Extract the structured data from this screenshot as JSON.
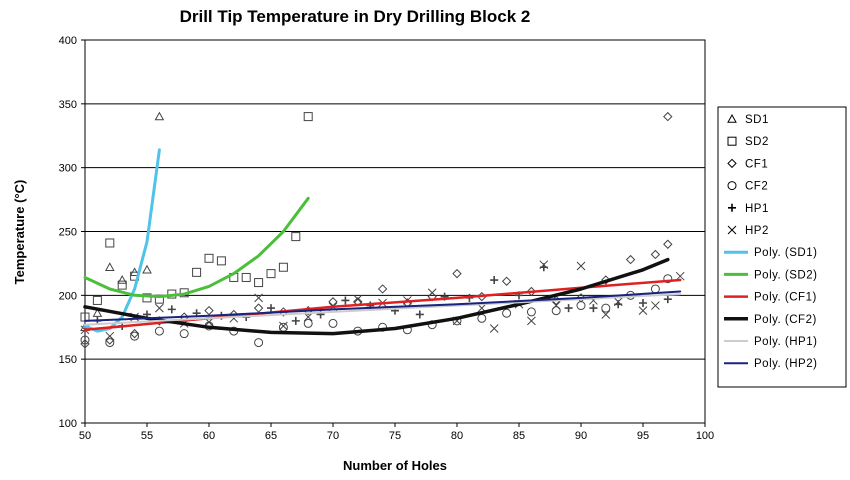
{
  "chart_data": {
    "type": "scatter",
    "title": "Drill Tip Temperature in Dry Drilling Block 2",
    "xlabel": "Number of Holes",
    "ylabel": "Temperature (°C)",
    "xlim": [
      50,
      100
    ],
    "ylim": [
      100,
      400
    ],
    "x_ticks": [
      50,
      55,
      60,
      65,
      70,
      75,
      80,
      85,
      90,
      95,
      100
    ],
    "y_ticks": [
      100,
      150,
      200,
      250,
      300,
      350,
      400
    ],
    "y_grid": true,
    "legend_position": "right",
    "series": [
      {
        "name": "SD1",
        "marker": "triangle",
        "color": "#444444",
        "points": [
          [
            50,
            175
          ],
          [
            51,
            186
          ],
          [
            52,
            222
          ],
          [
            53,
            212
          ],
          [
            54,
            218
          ],
          [
            55,
            220
          ],
          [
            56,
            340
          ]
        ]
      },
      {
        "name": "SD2",
        "marker": "square",
        "color": "#444444",
        "points": [
          [
            50,
            183
          ],
          [
            51,
            196
          ],
          [
            52,
            241
          ],
          [
            53,
            208
          ],
          [
            54,
            215
          ],
          [
            55,
            198
          ],
          [
            56,
            197
          ],
          [
            57,
            201
          ],
          [
            58,
            202
          ],
          [
            59,
            218
          ],
          [
            60,
            229
          ],
          [
            61,
            227
          ],
          [
            62,
            214
          ],
          [
            63,
            214
          ],
          [
            64,
            210
          ],
          [
            65,
            217
          ],
          [
            66,
            222
          ],
          [
            67,
            246
          ],
          [
            68,
            340
          ]
        ]
      },
      {
        "name": "CF1",
        "marker": "diamond",
        "color": "#444444",
        "points": [
          [
            50,
            162
          ],
          [
            52,
            165
          ],
          [
            54,
            170
          ],
          [
            56,
            180
          ],
          [
            58,
            183
          ],
          [
            60,
            188
          ],
          [
            62,
            185
          ],
          [
            64,
            190
          ],
          [
            66,
            187
          ],
          [
            68,
            188
          ],
          [
            70,
            195
          ],
          [
            72,
            195
          ],
          [
            74,
            205
          ],
          [
            76,
            194
          ],
          [
            78,
            199
          ],
          [
            80,
            217
          ],
          [
            82,
            199
          ],
          [
            84,
            211
          ],
          [
            86,
            203
          ],
          [
            88,
            196
          ],
          [
            90,
            198
          ],
          [
            92,
            212
          ],
          [
            94,
            228
          ],
          [
            96,
            232
          ],
          [
            97,
            340
          ],
          [
            97,
            240
          ]
        ]
      },
      {
        "name": "CF2",
        "marker": "circle",
        "color": "#444444",
        "points": [
          [
            50,
            165
          ],
          [
            52,
            163
          ],
          [
            54,
            168
          ],
          [
            56,
            172
          ],
          [
            58,
            170
          ],
          [
            60,
            176
          ],
          [
            62,
            172
          ],
          [
            64,
            163
          ],
          [
            66,
            175
          ],
          [
            68,
            178
          ],
          [
            70,
            178
          ],
          [
            72,
            172
          ],
          [
            74,
            175
          ],
          [
            76,
            173
          ],
          [
            78,
            177
          ],
          [
            80,
            180
          ],
          [
            82,
            182
          ],
          [
            84,
            186
          ],
          [
            86,
            187
          ],
          [
            88,
            188
          ],
          [
            90,
            192
          ],
          [
            92,
            190
          ],
          [
            94,
            200
          ],
          [
            96,
            205
          ],
          [
            97,
            213
          ]
        ]
      },
      {
        "name": "HP1",
        "marker": "plus",
        "color": "#444444",
        "points": [
          [
            51,
            180
          ],
          [
            53,
            176
          ],
          [
            55,
            185
          ],
          [
            57,
            189
          ],
          [
            59,
            186
          ],
          [
            61,
            184
          ],
          [
            63,
            183
          ],
          [
            65,
            190
          ],
          [
            67,
            180
          ],
          [
            69,
            185
          ],
          [
            71,
            196
          ],
          [
            73,
            192
          ],
          [
            75,
            188
          ],
          [
            77,
            185
          ],
          [
            79,
            199
          ],
          [
            81,
            198
          ],
          [
            83,
            212
          ],
          [
            85,
            200
          ],
          [
            87,
            222
          ],
          [
            89,
            190
          ],
          [
            91,
            190
          ],
          [
            93,
            193
          ],
          [
            95,
            194
          ],
          [
            97,
            197
          ]
        ]
      },
      {
        "name": "HP2",
        "marker": "cross",
        "color": "#444444",
        "points": [
          [
            50,
            173
          ],
          [
            52,
            168
          ],
          [
            54,
            183
          ],
          [
            56,
            190
          ],
          [
            58,
            178
          ],
          [
            60,
            179
          ],
          [
            62,
            182
          ],
          [
            64,
            198
          ],
          [
            66,
            176
          ],
          [
            68,
            183
          ],
          [
            70,
            191
          ],
          [
            72,
            197
          ],
          [
            74,
            194
          ],
          [
            76,
            196
          ],
          [
            78,
            202
          ],
          [
            80,
            180
          ],
          [
            82,
            190
          ],
          [
            83,
            174
          ],
          [
            85,
            193
          ],
          [
            86,
            180
          ],
          [
            87,
            224
          ],
          [
            88,
            192
          ],
          [
            90,
            223
          ],
          [
            91,
            196
          ],
          [
            92,
            185
          ],
          [
            93,
            195
          ],
          [
            95,
            188
          ],
          [
            96,
            192
          ],
          [
            98,
            215
          ]
        ]
      },
      {
        "name": "Poly. (SD1)",
        "type": "line",
        "color": "#4fc4e8",
        "points": [
          [
            50,
            176
          ],
          [
            51,
            172
          ],
          [
            52,
            174
          ],
          [
            53,
            183
          ],
          [
            54,
            205
          ],
          [
            55,
            242
          ],
          [
            56,
            314
          ]
        ]
      },
      {
        "name": "Poly. (SD2)",
        "type": "line",
        "color": "#4cbf3a",
        "points": [
          [
            50,
            214
          ],
          [
            52,
            205
          ],
          [
            54,
            200
          ],
          [
            56,
            199
          ],
          [
            58,
            201
          ],
          [
            60,
            207
          ],
          [
            62,
            217
          ],
          [
            64,
            231
          ],
          [
            66,
            250
          ],
          [
            68,
            276
          ]
        ]
      },
      {
        "name": "Poly. (CF1)",
        "type": "line",
        "color": "#e02020",
        "points": [
          [
            50,
            173
          ],
          [
            60,
            182
          ],
          [
            70,
            191
          ],
          [
            80,
            198
          ],
          [
            90,
            206
          ],
          [
            98,
            212
          ]
        ]
      },
      {
        "name": "Poly. (CF2)",
        "type": "line",
        "color": "#111111",
        "points": [
          [
            50,
            191
          ],
          [
            55,
            182
          ],
          [
            60,
            175
          ],
          [
            65,
            171
          ],
          [
            70,
            170
          ],
          [
            75,
            174
          ],
          [
            80,
            182
          ],
          [
            85,
            193
          ],
          [
            90,
            205
          ],
          [
            95,
            220
          ],
          [
            97,
            228
          ]
        ]
      },
      {
        "name": "Poly. (HP1)",
        "type": "line",
        "color": "#cccccc",
        "points": [
          [
            50,
            177
          ],
          [
            60,
            182
          ],
          [
            70,
            187
          ],
          [
            80,
            192
          ],
          [
            90,
            197
          ],
          [
            98,
            201
          ]
        ]
      },
      {
        "name": "Poly. (HP2)",
        "type": "line",
        "color": "#1a237e",
        "points": [
          [
            50,
            180
          ],
          [
            60,
            184
          ],
          [
            70,
            189
          ],
          [
            80,
            193
          ],
          [
            90,
            198
          ],
          [
            98,
            203
          ]
        ]
      }
    ]
  }
}
